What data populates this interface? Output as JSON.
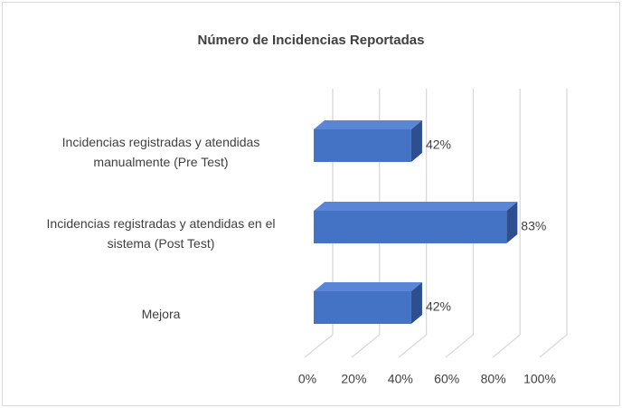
{
  "chart_data": {
    "type": "bar",
    "orientation": "horizontal",
    "title": "Número de Incidencias Reportadas",
    "categories": [
      "Incidencias registradas y atendidas manualmente (Pre Test)",
      "Incidencias registradas y atendidas en el sistema (Post Test)",
      "Mejora"
    ],
    "values": [
      42,
      83,
      42
    ],
    "value_labels": [
      "42%",
      "83%",
      "42%"
    ],
    "color": "#4472c4",
    "xlim": [
      0,
      100
    ],
    "xticks": [
      {
        "value": 0,
        "label": "0%"
      },
      {
        "value": 20,
        "label": "20%"
      },
      {
        "value": 40,
        "label": "40%"
      },
      {
        "value": 60,
        "label": "60%"
      },
      {
        "value": 80,
        "label": "80%"
      },
      {
        "value": 100,
        "label": "100%"
      }
    ],
    "grid": true
  }
}
